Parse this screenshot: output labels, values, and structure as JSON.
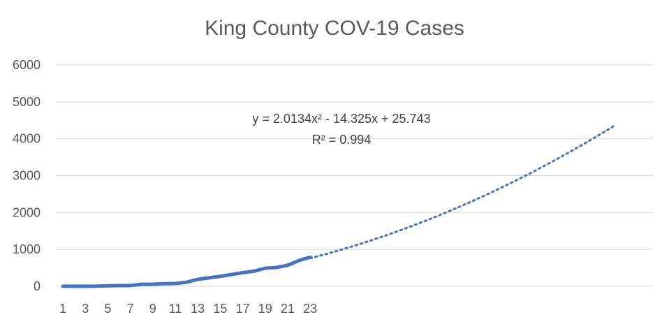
{
  "chart_data": {
    "type": "line",
    "title": "King County COV-19 Cases",
    "xlabel": "",
    "ylabel": "",
    "ylim": [
      0,
      6000
    ],
    "yticks": [
      0,
      1000,
      2000,
      3000,
      4000,
      5000,
      6000
    ],
    "xtick_labels": [
      "1",
      "3",
      "5",
      "7",
      "9",
      "11",
      "13",
      "15",
      "17",
      "19",
      "21",
      "23"
    ],
    "grid": true,
    "legend": "none",
    "series": [
      {
        "x": [
          1,
          2,
          3,
          4,
          5,
          6,
          7,
          8,
          9,
          10,
          11,
          12,
          13,
          14,
          15,
          16,
          17,
          18,
          19,
          20,
          21,
          22,
          23
        ],
        "values": [
          2,
          2,
          2,
          5,
          15,
          18,
          20,
          55,
          58,
          70,
          75,
          110,
          190,
          230,
          270,
          320,
          370,
          410,
          490,
          510,
          570,
          700,
          790
        ],
        "color": "#4472c4"
      }
    ],
    "trendline": {
      "type": "polynomial",
      "order": 2,
      "coefficients": [
        2.0134,
        -14.325,
        25.743
      ],
      "x_range": [
        23,
        50
      ],
      "color": "#4472c4",
      "equation_text": "y = 2.0134x² - 14.325x + 25.743",
      "r2_text": "R² = 0.994"
    }
  }
}
